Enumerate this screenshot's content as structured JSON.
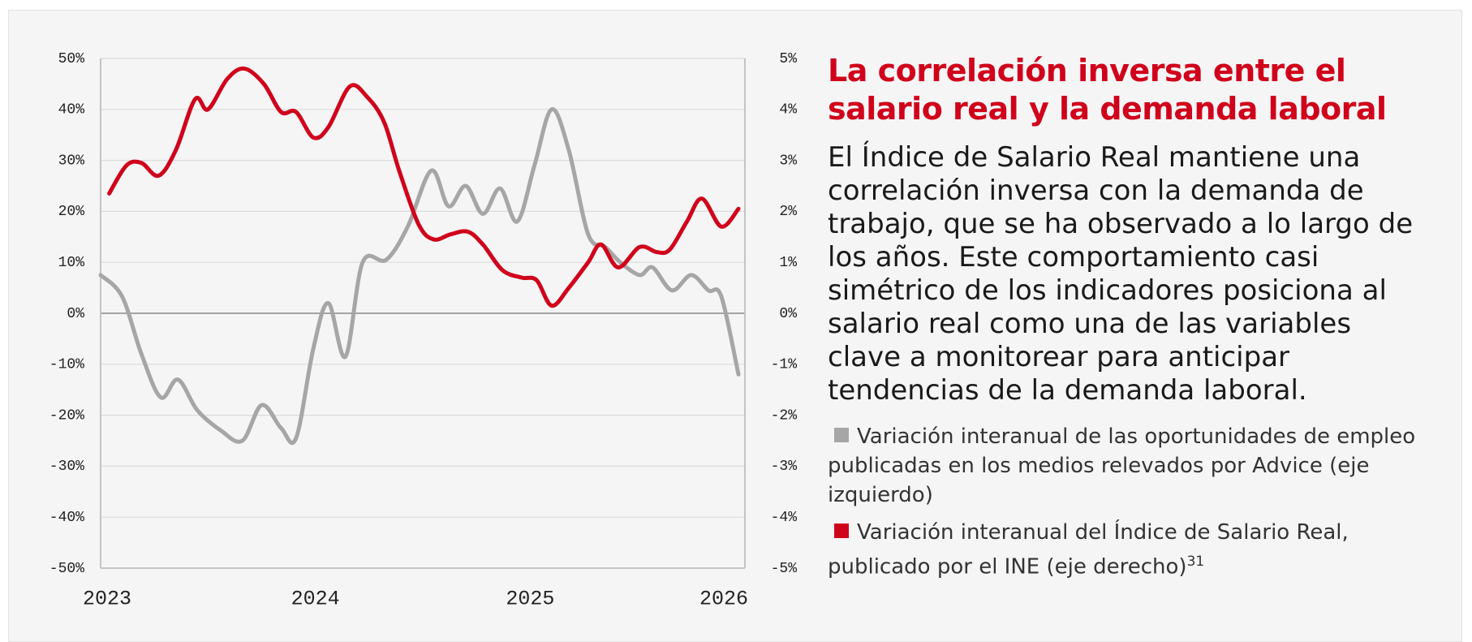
{
  "chart_data": {
    "type": "line",
    "title": "La correlación inversa entre el salario real y la demanda laboral",
    "description": "El Índice de Salario Real mantiene una correlación inversa con la demanda de trabajo, que se ha observado a lo largo de los años. Este comportamiento casi simétrico de los indicadores posiciona al salario real como una de las variables clave a monitorear para anticipar tendencias de la demanda laboral.",
    "footnote_ref": "31",
    "xlim": [
      2023,
      2026
    ],
    "xticks": [
      2023,
      2024,
      2025,
      2026
    ],
    "ylim": [
      -50,
      50
    ],
    "yticks": [
      {
        "value": -50,
        "label": "-50%"
      },
      {
        "value": -40,
        "label": "-40%"
      },
      {
        "value": -30,
        "label": "-30%"
      },
      {
        "value": -20,
        "label": "-20%"
      },
      {
        "value": -10,
        "label": "-10%"
      },
      {
        "value": 0,
        "label": "0%"
      },
      {
        "value": 10,
        "label": "10%"
      },
      {
        "value": 20,
        "label": "20%"
      },
      {
        "value": 30,
        "label": "30%"
      },
      {
        "value": 40,
        "label": "40%"
      },
      {
        "value": 50,
        "label": "50%"
      }
    ],
    "y2lim": [
      -5,
      5
    ],
    "y2ticks": [
      {
        "value": -5,
        "label": "-5%"
      },
      {
        "value": -4,
        "label": "-4%"
      },
      {
        "value": -3,
        "label": "-3%"
      },
      {
        "value": -2,
        "label": "-2%"
      },
      {
        "value": -1,
        "label": "-1%"
      },
      {
        "value": 0,
        "label": "0%"
      },
      {
        "value": 1,
        "label": "1%"
      },
      {
        "value": 2,
        "label": "2%"
      },
      {
        "value": 3,
        "label": "3%"
      },
      {
        "value": 4,
        "label": "4%"
      },
      {
        "value": 5,
        "label": "5%"
      }
    ],
    "grid": true,
    "series": [
      {
        "name": "Variación interanual de las oportunidades de empleo publicadas en los medios relevados por Advice (eje izquierdo)",
        "color": "#a6a6a6",
        "axis": "y",
        "x": [
          2023.0,
          2023.1,
          2023.19,
          2023.28,
          2023.36,
          2023.45,
          2023.56,
          2023.66,
          2023.75,
          2023.84,
          2023.91,
          2023.99,
          2024.06,
          2024.14,
          2024.22,
          2024.33,
          2024.43,
          2024.54,
          2024.62,
          2024.7,
          2024.78,
          2024.86,
          2024.94,
          2025.02,
          2025.1,
          2025.18,
          2025.27,
          2025.35,
          2025.42,
          2025.51,
          2025.57,
          2025.66,
          2025.75,
          2025.83,
          2025.89,
          2025.97
        ],
        "values": [
          7.5,
          3.3,
          -8,
          -16.5,
          -13,
          -19,
          -23,
          -25,
          -18,
          -22.5,
          -24.5,
          -7,
          2,
          -8.5,
          10,
          10.5,
          17,
          28,
          21,
          25,
          19.5,
          24.5,
          18,
          29,
          40,
          32,
          15.5,
          13,
          10,
          7.5,
          9,
          4.5,
          7.5,
          4.5,
          3.3,
          -12
        ]
      },
      {
        "name": "Variación interanual del Índice de Salario Real, publicado por el INE (eje derecho)",
        "color": "#d0021b",
        "axis": "y2",
        "x": [
          2023.04,
          2023.12,
          2023.19,
          2023.27,
          2023.35,
          2023.44,
          2023.5,
          2023.59,
          2023.67,
          2023.76,
          2023.84,
          2023.91,
          2023.99,
          2024.06,
          2024.16,
          2024.24,
          2024.32,
          2024.39,
          2024.48,
          2024.55,
          2024.63,
          2024.71,
          2024.78,
          2024.87,
          2024.96,
          2025.03,
          2025.1,
          2025.18,
          2025.27,
          2025.33,
          2025.41,
          2025.51,
          2025.59,
          2025.65,
          2025.73,
          2025.8,
          2025.89,
          2025.97
        ],
        "values": [
          2.35,
          2.9,
          2.95,
          2.7,
          3.2,
          4.2,
          4.0,
          4.6,
          4.8,
          4.5,
          3.95,
          3.95,
          3.45,
          3.65,
          4.45,
          4.25,
          3.75,
          2.8,
          1.75,
          1.45,
          1.55,
          1.6,
          1.35,
          0.85,
          0.7,
          0.65,
          0.15,
          0.5,
          1.0,
          1.35,
          0.9,
          1.3,
          1.2,
          1.25,
          1.8,
          2.25,
          1.7,
          2.05
        ]
      }
    ]
  }
}
